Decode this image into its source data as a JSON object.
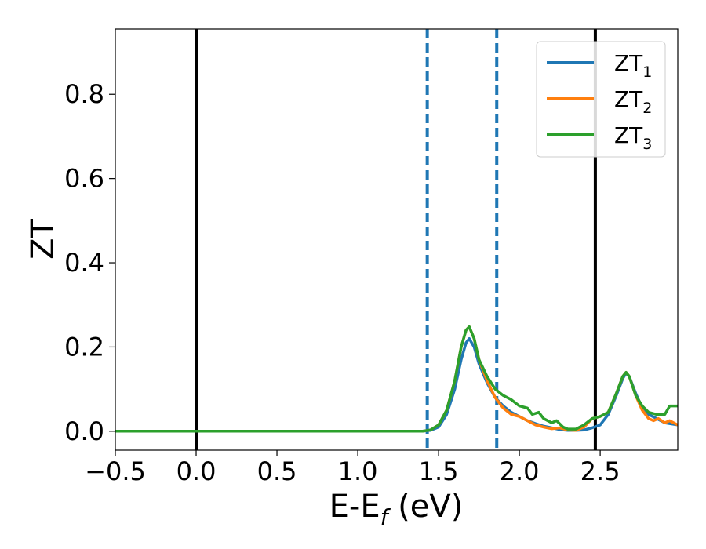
{
  "chart_data": {
    "type": "line",
    "xlabel_main": "E-E",
    "xlabel_sub": "f",
    "xlabel_tail": " (eV)",
    "ylabel": "ZT",
    "xlim": [
      -0.5,
      2.98
    ],
    "ylim": [
      -0.045,
      0.955
    ],
    "xticks": [
      -0.5,
      0.0,
      0.5,
      1.0,
      1.5,
      2.0,
      2.5
    ],
    "xtick_labels": [
      "−0.5",
      "0.0",
      "0.5",
      "1.0",
      "1.5",
      "2.0",
      "2.5"
    ],
    "yticks": [
      0.0,
      0.2,
      0.4,
      0.6,
      0.8
    ],
    "ytick_labels": [
      "0.0",
      "0.2",
      "0.4",
      "0.6",
      "0.8"
    ],
    "grid": false,
    "legend_position": "top-right",
    "vlines": [
      {
        "x": 0.0,
        "style": "solid",
        "color": "#000000"
      },
      {
        "x": 2.47,
        "style": "solid",
        "color": "#000000"
      },
      {
        "x": 1.43,
        "style": "dashed",
        "color": "#1f77b4"
      },
      {
        "x": 1.86,
        "style": "dashed",
        "color": "#1f77b4"
      }
    ],
    "series": [
      {
        "name_base": "ZT",
        "name_sub": "1",
        "color": "#1f77b4",
        "points": [
          [
            -0.5,
            0
          ],
          [
            1.4,
            0
          ],
          [
            1.45,
            0.002
          ],
          [
            1.5,
            0.01
          ],
          [
            1.55,
            0.04
          ],
          [
            1.6,
            0.1
          ],
          [
            1.64,
            0.17
          ],
          [
            1.67,
            0.21
          ],
          [
            1.69,
            0.22
          ],
          [
            1.72,
            0.2
          ],
          [
            1.75,
            0.16
          ],
          [
            1.8,
            0.115
          ],
          [
            1.85,
            0.08
          ],
          [
            1.9,
            0.06
          ],
          [
            1.95,
            0.045
          ],
          [
            2.0,
            0.035
          ],
          [
            2.05,
            0.025
          ],
          [
            2.1,
            0.018
          ],
          [
            2.15,
            0.012
          ],
          [
            2.2,
            0.008
          ],
          [
            2.25,
            0.004
          ],
          [
            2.3,
            0.002
          ],
          [
            2.35,
            0.002
          ],
          [
            2.4,
            0.003
          ],
          [
            2.45,
            0.008
          ],
          [
            2.5,
            0.015
          ],
          [
            2.55,
            0.04
          ],
          [
            2.6,
            0.085
          ],
          [
            2.64,
            0.125
          ],
          [
            2.66,
            0.138
          ],
          [
            2.68,
            0.13
          ],
          [
            2.72,
            0.09
          ],
          [
            2.76,
            0.055
          ],
          [
            2.8,
            0.04
          ],
          [
            2.85,
            0.03
          ],
          [
            2.9,
            0.02
          ],
          [
            2.98,
            0.015
          ]
        ]
      },
      {
        "name_base": "ZT",
        "name_sub": "2",
        "color": "#ff7f0e",
        "points": [
          [
            -0.5,
            0
          ],
          [
            1.4,
            0
          ],
          [
            1.45,
            0.003
          ],
          [
            1.5,
            0.015
          ],
          [
            1.55,
            0.05
          ],
          [
            1.6,
            0.12
          ],
          [
            1.64,
            0.2
          ],
          [
            1.67,
            0.24
          ],
          [
            1.69,
            0.248
          ],
          [
            1.72,
            0.22
          ],
          [
            1.75,
            0.17
          ],
          [
            1.8,
            0.12
          ],
          [
            1.85,
            0.08
          ],
          [
            1.9,
            0.055
          ],
          [
            1.95,
            0.04
          ],
          [
            2.0,
            0.035
          ],
          [
            2.05,
            0.025
          ],
          [
            2.1,
            0.015
          ],
          [
            2.15,
            0.01
          ],
          [
            2.2,
            0.006
          ],
          [
            2.25,
            0.008
          ],
          [
            2.3,
            0.003
          ],
          [
            2.35,
            0.002
          ],
          [
            2.4,
            0.01
          ],
          [
            2.45,
            0.03
          ],
          [
            2.5,
            0.035
          ],
          [
            2.55,
            0.045
          ],
          [
            2.6,
            0.09
          ],
          [
            2.64,
            0.13
          ],
          [
            2.66,
            0.14
          ],
          [
            2.68,
            0.13
          ],
          [
            2.72,
            0.085
          ],
          [
            2.76,
            0.05
          ],
          [
            2.8,
            0.03
          ],
          [
            2.83,
            0.025
          ],
          [
            2.86,
            0.03
          ],
          [
            2.9,
            0.02
          ],
          [
            2.93,
            0.025
          ],
          [
            2.98,
            0.015
          ]
        ]
      },
      {
        "name_base": "ZT",
        "name_sub": "3",
        "color": "#2ca02c",
        "points": [
          [
            -0.5,
            0
          ],
          [
            1.4,
            0
          ],
          [
            1.45,
            0.003
          ],
          [
            1.5,
            0.015
          ],
          [
            1.55,
            0.05
          ],
          [
            1.6,
            0.12
          ],
          [
            1.64,
            0.2
          ],
          [
            1.67,
            0.24
          ],
          [
            1.69,
            0.248
          ],
          [
            1.72,
            0.22
          ],
          [
            1.75,
            0.17
          ],
          [
            1.8,
            0.13
          ],
          [
            1.85,
            0.1
          ],
          [
            1.9,
            0.085
          ],
          [
            1.95,
            0.075
          ],
          [
            2.0,
            0.06
          ],
          [
            2.05,
            0.055
          ],
          [
            2.08,
            0.04
          ],
          [
            2.12,
            0.045
          ],
          [
            2.15,
            0.03
          ],
          [
            2.2,
            0.02
          ],
          [
            2.23,
            0.025
          ],
          [
            2.27,
            0.01
          ],
          [
            2.3,
            0.005
          ],
          [
            2.35,
            0.005
          ],
          [
            2.4,
            0.015
          ],
          [
            2.45,
            0.03
          ],
          [
            2.5,
            0.035
          ],
          [
            2.55,
            0.045
          ],
          [
            2.6,
            0.09
          ],
          [
            2.64,
            0.13
          ],
          [
            2.66,
            0.14
          ],
          [
            2.68,
            0.13
          ],
          [
            2.72,
            0.085
          ],
          [
            2.76,
            0.06
          ],
          [
            2.8,
            0.045
          ],
          [
            2.85,
            0.04
          ],
          [
            2.9,
            0.04
          ],
          [
            2.93,
            0.06
          ],
          [
            2.98,
            0.06
          ]
        ]
      }
    ]
  }
}
